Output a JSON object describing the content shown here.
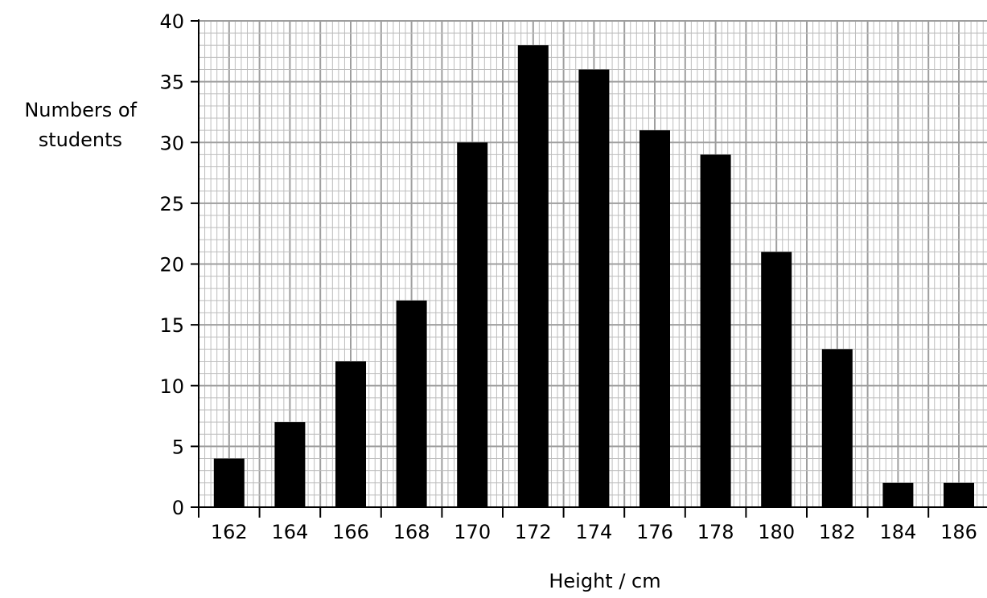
{
  "chart_data": {
    "type": "bar",
    "categories": [
      "162",
      "164",
      "166",
      "168",
      "170",
      "172",
      "174",
      "176",
      "178",
      "180",
      "182",
      "184",
      "186"
    ],
    "values": [
      4,
      7,
      12,
      17,
      30,
      38,
      36,
      31,
      29,
      21,
      13,
      2,
      2
    ],
    "title": "",
    "xlabel": "Height / cm",
    "ylabel_lines": [
      "Numbers of",
      "students"
    ],
    "ylim": [
      0,
      40
    ],
    "y_ticks": [
      0,
      5,
      10,
      15,
      20,
      25,
      30,
      35,
      40
    ],
    "grid": true,
    "colors": {
      "bar": "#000000",
      "grid_minor": "#bdbdbd",
      "grid_major": "#9e9e9e",
      "axis": "#000000"
    }
  }
}
